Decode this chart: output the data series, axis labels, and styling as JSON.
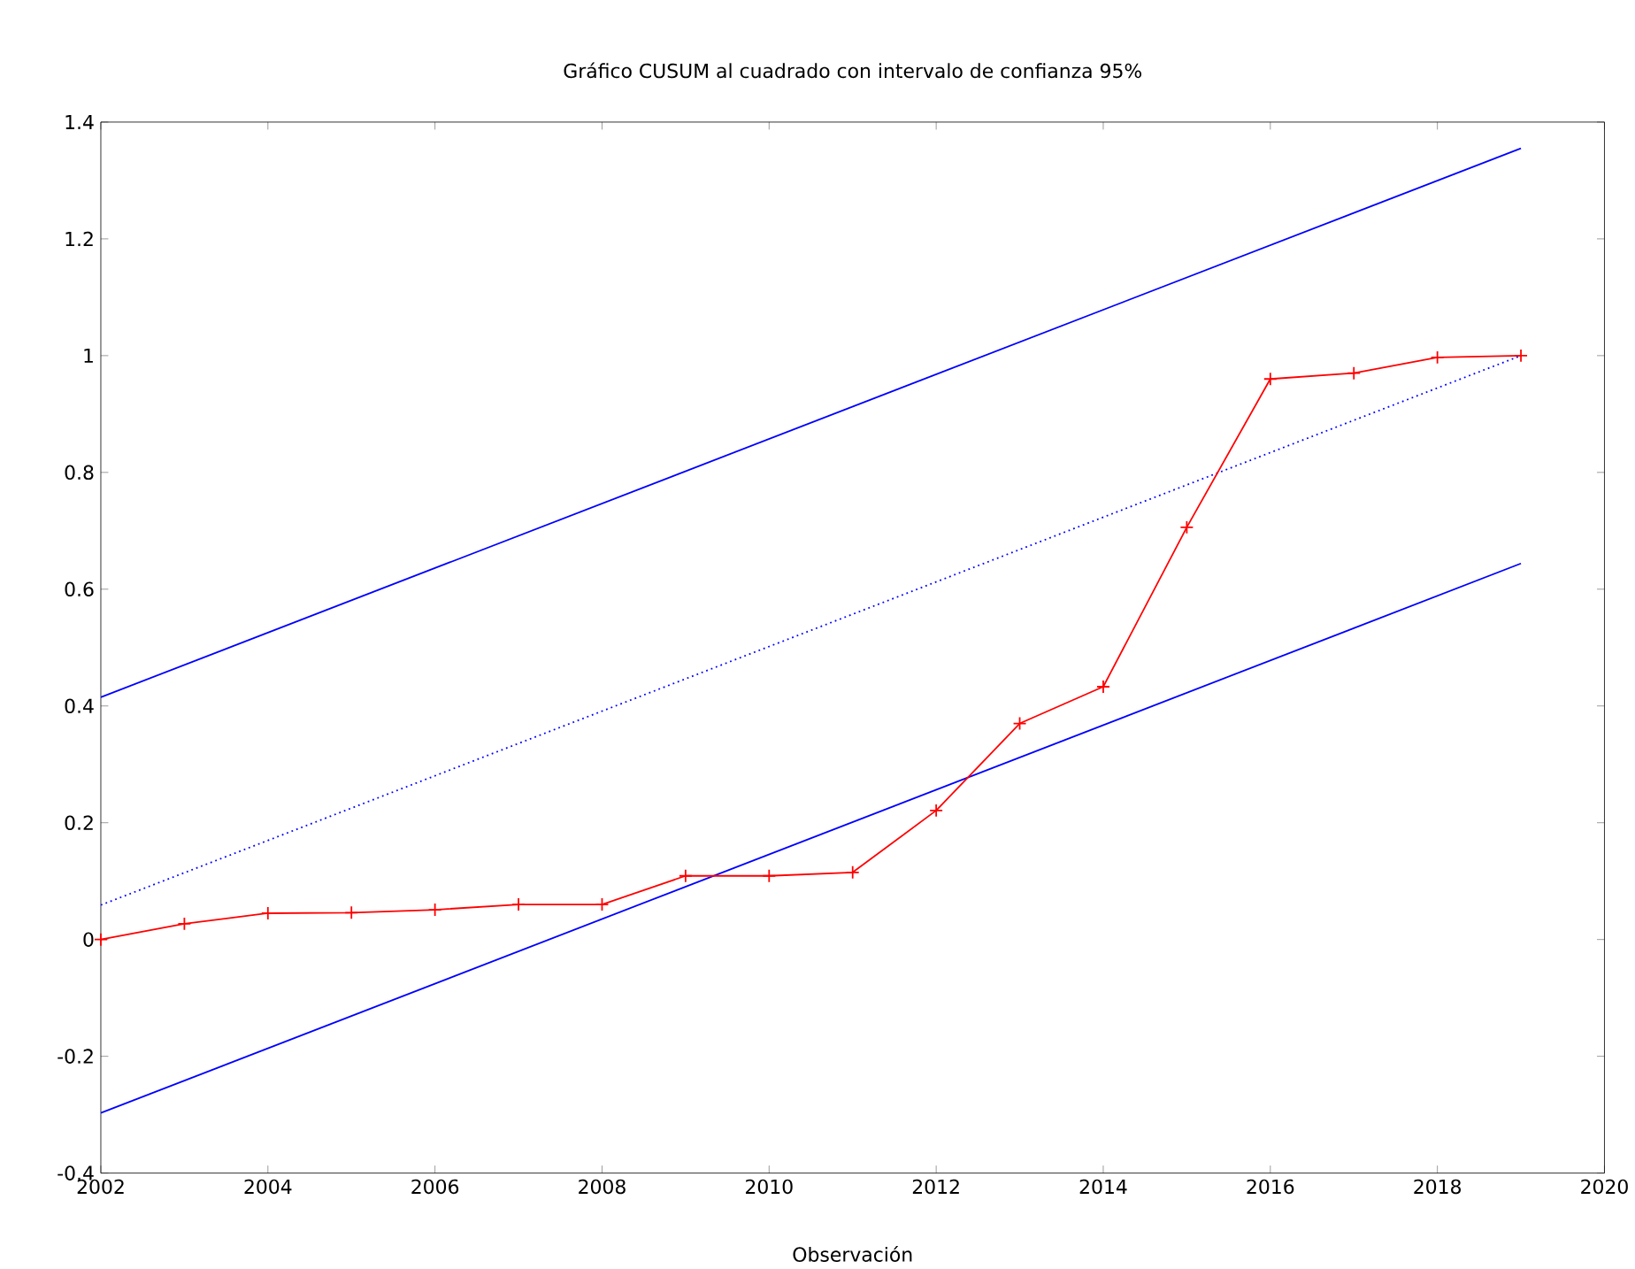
{
  "chart_data": {
    "type": "line",
    "title": "Gráfico CUSUM al cuadrado con intervalo de confianza 95%",
    "xlabel": "Observación",
    "xlim": [
      2002,
      2020
    ],
    "ylim": [
      -0.4,
      1.4
    ],
    "xticks": [
      2002,
      2004,
      2006,
      2008,
      2010,
      2012,
      2014,
      2016,
      2018,
      2020
    ],
    "yticks": [
      -0.4,
      -0.2,
      0,
      0.2,
      0.4,
      0.6,
      0.8,
      1,
      1.2,
      1.4
    ],
    "series": [
      {
        "color": "#0000ff",
        "marker": "none",
        "line_style": "solid",
        "x": [
          2002,
          2019
        ],
        "values": [
          0.415,
          1.355
        ]
      },
      {
        "color": "#0000ff",
        "marker": "none",
        "line_style": "solid",
        "x": [
          2002,
          2019
        ],
        "values": [
          -0.297,
          0.644
        ]
      },
      {
        "color": "#0000ff",
        "marker": "none",
        "line_style": "dotted",
        "x": [
          2002,
          2019
        ],
        "values": [
          0.059,
          1.0
        ]
      },
      {
        "color": "#ff0000",
        "marker": "cross",
        "line_style": "solid",
        "x": [
          2002,
          2003,
          2004,
          2005,
          2006,
          2007,
          2008,
          2009,
          2010,
          2011,
          2012,
          2013,
          2014,
          2015,
          2016,
          2017,
          2018,
          2019
        ],
        "values": [
          0,
          0.027,
          0.045,
          0.046,
          0.051,
          0.06,
          0.06,
          0.109,
          0.109,
          0.115,
          0.221,
          0.37,
          0.433,
          0.706,
          0.96,
          0.97,
          0.997,
          1.0
        ]
      }
    ]
  }
}
